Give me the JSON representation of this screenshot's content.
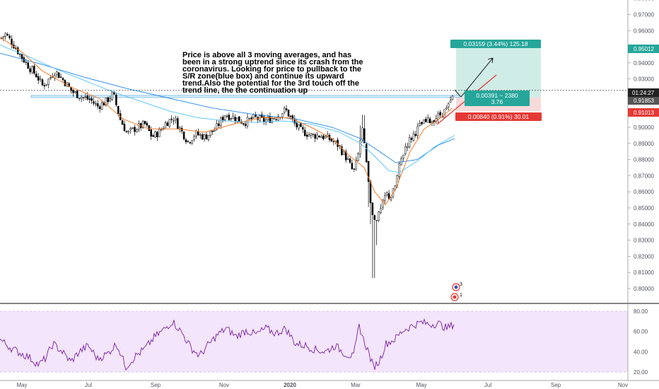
{
  "chart_data": {
    "type": "candlestick",
    "price_axis": {
      "range": [
        0.7925,
        0.979
      ],
      "ticks": [
        "0.98000",
        "0.97000",
        "0.96000",
        "0.95000",
        "0.94000",
        "0.93000",
        "0.92000",
        "0.91000",
        "0.90000",
        "0.89000",
        "0.88000",
        "0.87000",
        "0.86000",
        "0.85000",
        "0.84000",
        "0.83000",
        "0.82000",
        "0.81000",
        "0.80000"
      ]
    },
    "time_axis": {
      "labels": [
        "May",
        "Jul",
        "Sep",
        "Nov",
        "2020",
        "Mar",
        "May",
        "Jul",
        "Sep",
        "Nov"
      ],
      "bold": [
        "2020"
      ]
    },
    "price_labels": {
      "target": "0.95012",
      "countdown": "01:24:27",
      "last": "0.91853",
      "stop": "0.91013"
    },
    "position": {
      "target_label": "0.03159 (3.44%) 125.18",
      "entry_label_1": "0.00391 ~ 2380",
      "entry_label_2": "3.76",
      "stop_label": "0.00840 (0.91%) 30.01",
      "entry": 0.91854,
      "target": 0.95012,
      "stop": 0.91013
    },
    "sr_zone": [
      0.9185,
      0.9198
    ],
    "annotation": [
      "Price is above all 3 moving averages, and has",
      "been in a strong uptrend since its crash from the",
      "coronavirus. Looking for price to pullback to the",
      "S/R zone(blue box) and continue its upward",
      "trend.Also the potential for the 3rd touch off the",
      "trend line, the the continuation up"
    ],
    "price_path": [
      [
        0,
        0.955
      ],
      [
        8,
        0.958
      ],
      [
        18,
        0.952
      ],
      [
        30,
        0.944
      ],
      [
        42,
        0.937
      ],
      [
        52,
        0.932
      ],
      [
        60,
        0.926
      ],
      [
        66,
        0.928
      ],
      [
        78,
        0.935
      ],
      [
        92,
        0.928
      ],
      [
        102,
        0.922
      ],
      [
        115,
        0.919
      ],
      [
        128,
        0.917
      ],
      [
        138,
        0.913
      ],
      [
        150,
        0.916
      ],
      [
        160,
        0.921
      ],
      [
        170,
        0.905
      ],
      [
        180,
        0.896
      ],
      [
        190,
        0.899
      ],
      [
        205,
        0.902
      ],
      [
        215,
        0.894
      ],
      [
        225,
        0.897
      ],
      [
        235,
        0.903
      ],
      [
        246,
        0.906
      ],
      [
        256,
        0.898
      ],
      [
        266,
        0.891
      ],
      [
        276,
        0.896
      ],
      [
        290,
        0.894
      ],
      [
        305,
        0.899
      ],
      [
        318,
        0.908
      ],
      [
        332,
        0.906
      ],
      [
        345,
        0.903
      ],
      [
        360,
        0.906
      ],
      [
        375,
        0.904
      ],
      [
        392,
        0.907
      ],
      [
        404,
        0.911
      ],
      [
        415,
        0.903
      ],
      [
        425,
        0.898
      ],
      [
        440,
        0.895
      ],
      [
        452,
        0.895
      ],
      [
        465,
        0.893
      ],
      [
        478,
        0.889
      ],
      [
        490,
        0.881
      ],
      [
        500,
        0.872
      ],
      [
        506,
        0.881
      ],
      [
        512,
        0.9
      ],
      [
        518,
        0.878
      ],
      [
        522,
        0.86
      ],
      [
        526,
        0.845
      ],
      [
        532,
        0.841
      ],
      [
        538,
        0.848
      ],
      [
        546,
        0.859
      ],
      [
        552,
        0.856
      ],
      [
        558,
        0.862
      ],
      [
        566,
        0.878
      ],
      [
        574,
        0.889
      ],
      [
        584,
        0.895
      ],
      [
        596,
        0.902
      ],
      [
        608,
        0.904
      ],
      [
        620,
        0.907
      ],
      [
        632,
        0.911
      ],
      [
        642,
        0.92
      ]
    ],
    "price_noise": 0.0025,
    "sma_fast": [
      [
        0,
        0.956
      ],
      [
        30,
        0.947
      ],
      [
        60,
        0.935
      ],
      [
        100,
        0.925
      ],
      [
        140,
        0.918
      ],
      [
        175,
        0.905
      ],
      [
        210,
        0.899
      ],
      [
        250,
        0.899
      ],
      [
        290,
        0.897
      ],
      [
        330,
        0.902
      ],
      [
        370,
        0.906
      ],
      [
        410,
        0.906
      ],
      [
        440,
        0.9
      ],
      [
        470,
        0.893
      ],
      [
        495,
        0.882
      ],
      [
        515,
        0.875
      ],
      [
        530,
        0.86
      ],
      [
        545,
        0.852
      ],
      [
        560,
        0.862
      ],
      [
        580,
        0.885
      ],
      [
        600,
        0.899
      ],
      [
        620,
        0.905
      ],
      [
        640,
        0.912
      ]
    ],
    "sma_mid": [
      [
        0,
        0.951
      ],
      [
        40,
        0.944
      ],
      [
        80,
        0.936
      ],
      [
        120,
        0.929
      ],
      [
        160,
        0.922
      ],
      [
        200,
        0.916
      ],
      [
        240,
        0.91
      ],
      [
        280,
        0.906
      ],
      [
        320,
        0.904
      ],
      [
        360,
        0.903
      ],
      [
        400,
        0.904
      ],
      [
        440,
        0.902
      ],
      [
        480,
        0.897
      ],
      [
        510,
        0.89
      ],
      [
        530,
        0.882
      ],
      [
        550,
        0.873
      ],
      [
        565,
        0.872
      ],
      [
        590,
        0.879
      ],
      [
        615,
        0.888
      ],
      [
        643,
        0.895
      ]
    ],
    "sma_slow": [
      [
        0,
        0.946
      ],
      [
        60,
        0.939
      ],
      [
        120,
        0.931
      ],
      [
        180,
        0.924
      ],
      [
        240,
        0.918
      ],
      [
        300,
        0.912
      ],
      [
        360,
        0.908
      ],
      [
        420,
        0.905
      ],
      [
        470,
        0.9
      ],
      [
        510,
        0.893
      ],
      [
        540,
        0.884
      ],
      [
        560,
        0.878
      ],
      [
        590,
        0.88
      ],
      [
        620,
        0.889
      ],
      [
        643,
        0.893
      ]
    ],
    "rsi": {
      "range": [
        20,
        80
      ],
      "ticks": [
        "80.00",
        "60.00",
        "40.00",
        "20.00"
      ],
      "band": [
        20,
        80
      ],
      "path": [
        [
          0,
          52
        ],
        [
          15,
          44
        ],
        [
          25,
          40
        ],
        [
          40,
          35
        ],
        [
          55,
          27
        ],
        [
          65,
          34
        ],
        [
          75,
          48
        ],
        [
          88,
          40
        ],
        [
          100,
          30
        ],
        [
          112,
          40
        ],
        [
          125,
          46
        ],
        [
          138,
          33
        ],
        [
          152,
          38
        ],
        [
          165,
          48
        ],
        [
          178,
          25
        ],
        [
          192,
          36
        ],
        [
          205,
          43
        ],
        [
          218,
          54
        ],
        [
          232,
          62
        ],
        [
          244,
          70
        ],
        [
          258,
          58
        ],
        [
          270,
          44
        ],
        [
          282,
          36
        ],
        [
          295,
          47
        ],
        [
          308,
          57
        ],
        [
          320,
          63
        ],
        [
          334,
          55
        ],
        [
          348,
          61
        ],
        [
          362,
          57
        ],
        [
          376,
          63
        ],
        [
          390,
          58
        ],
        [
          404,
          63
        ],
        [
          418,
          48
        ],
        [
          432,
          46
        ],
        [
          446,
          42
        ],
        [
          460,
          40
        ],
        [
          474,
          46
        ],
        [
          488,
          38
        ],
        [
          500,
          35
        ],
        [
          508,
          66
        ],
        [
          514,
          52
        ],
        [
          520,
          42
        ],
        [
          528,
          25
        ],
        [
          536,
          30
        ],
        [
          546,
          48
        ],
        [
          558,
          52
        ],
        [
          570,
          61
        ],
        [
          584,
          66
        ],
        [
          596,
          69
        ],
        [
          608,
          67
        ],
        [
          620,
          68
        ],
        [
          632,
          63
        ],
        [
          643,
          68
        ]
      ],
      "noise": 4
    },
    "event_badges": [
      "3",
      "1"
    ],
    "colors": {
      "up": "#000000",
      "down": "#000000",
      "sma_fast": "#f57c2a",
      "sma_mid": "#4fc3f7",
      "sma_slow": "#1e88e5",
      "target_zone": "#d0ece6",
      "stop_zone": "#f7dada",
      "target_label": "#26a69a",
      "stop_label": "#e53935",
      "rsi_line": "#7b1fa2",
      "rsi_band": "#f3e5fb"
    }
  }
}
